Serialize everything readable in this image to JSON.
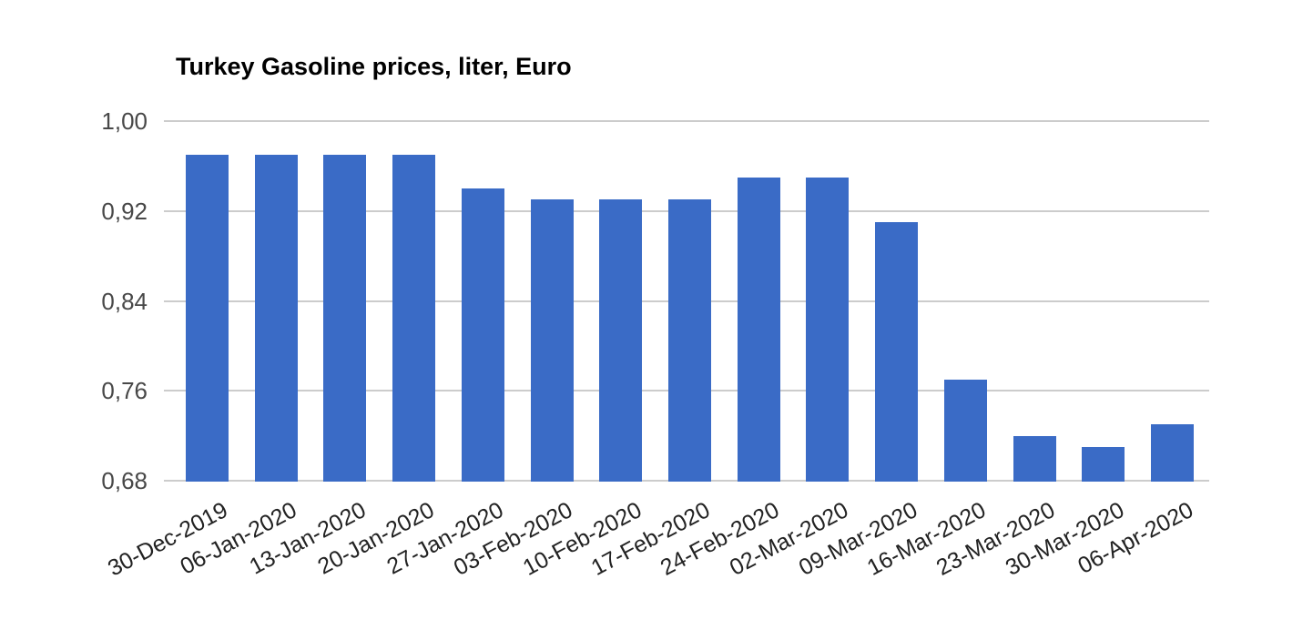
{
  "chart_data": {
    "type": "bar",
    "title": "Turkey Gasoline prices, liter, Euro",
    "categories": [
      "30-Dec-2019",
      "06-Jan-2020",
      "13-Jan-2020",
      "20-Jan-2020",
      "27-Jan-2020",
      "03-Feb-2020",
      "10-Feb-2020",
      "17-Feb-2020",
      "24-Feb-2020",
      "02-Mar-2020",
      "09-Mar-2020",
      "16-Mar-2020",
      "23-Mar-2020",
      "30-Mar-2020",
      "06-Apr-2020"
    ],
    "values": [
      0.97,
      0.97,
      0.97,
      0.97,
      0.94,
      0.93,
      0.93,
      0.93,
      0.95,
      0.95,
      0.91,
      0.77,
      0.72,
      0.71,
      0.73
    ],
    "xlabel": "",
    "ylabel": "",
    "ylim": [
      0.68,
      1.0
    ],
    "y_ticks": [
      {
        "value": 1.0,
        "label": "1,00"
      },
      {
        "value": 0.92,
        "label": "0,92"
      },
      {
        "value": 0.84,
        "label": "0,84"
      },
      {
        "value": 0.76,
        "label": "0,76"
      },
      {
        "value": 0.68,
        "label": "0,68"
      }
    ],
    "grid": true,
    "legend_position": "none",
    "bar_color": "#3A6BC6",
    "gridline_color": "#CCCCCC",
    "background_color": "#FFFFFF"
  }
}
